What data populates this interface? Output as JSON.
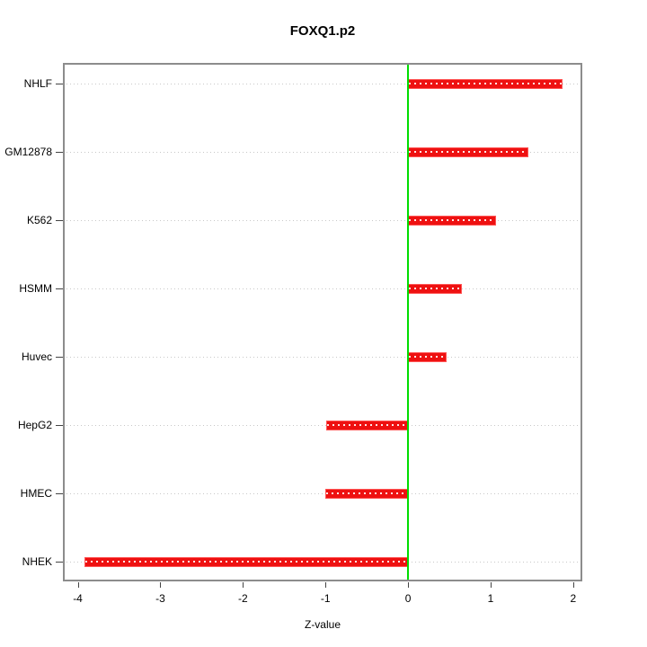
{
  "chart_data": {
    "type": "bar",
    "orientation": "horizontal",
    "title": "FOXQ1.p2",
    "xlabel": "Z-value",
    "ylabel": "",
    "categories": [
      "NHLF",
      "GM12878",
      "K562",
      "HSMM",
      "Huvec",
      "HepG2",
      "HMEC",
      "NHEK"
    ],
    "values": [
      1.87,
      1.46,
      1.07,
      0.65,
      0.47,
      -0.99,
      -1.0,
      -3.92
    ],
    "x_ticks": [
      -4,
      -3,
      -2,
      -1,
      0,
      1,
      2
    ],
    "xlim": [
      -4.18,
      2.11
    ],
    "grid": "dotted horizontal line per category",
    "legend": "none",
    "zero_reference_line": 0,
    "colors": {
      "bar": "#ee1111",
      "bar_edge": "#ff5555",
      "bar_dotted_overlay": "#ffffff",
      "zero_line": "#00dd00",
      "gridline": "#c8c8c8",
      "plot_border": "#8c8c8c",
      "text": "#000000",
      "background": "#ffffff"
    }
  }
}
